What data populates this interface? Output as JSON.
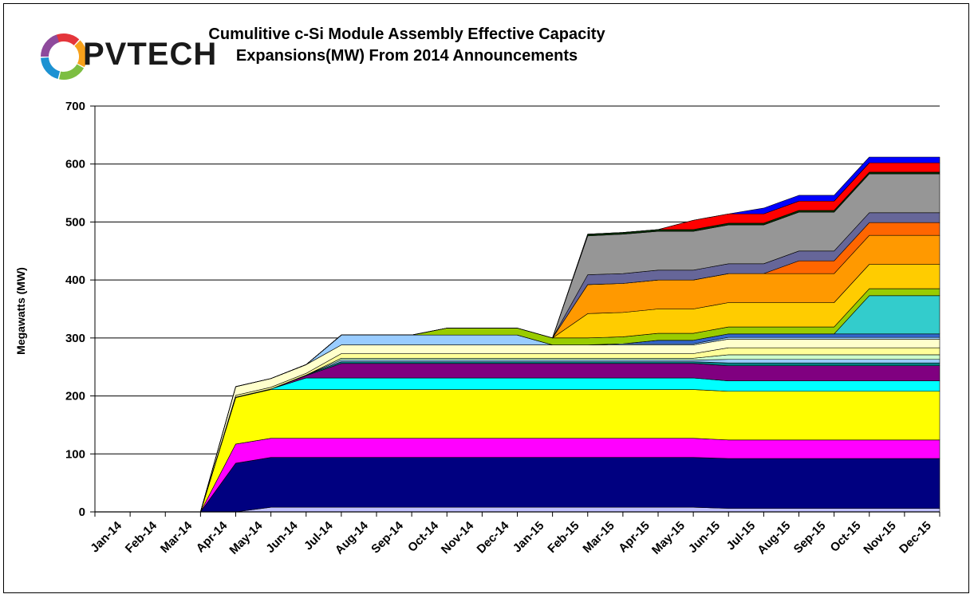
{
  "chart_data": {
    "type": "area",
    "stacked": true,
    "title_line1": "Cumulitive c-Si Module Assembly Effective Capacity",
    "title_line2": "Expansions(MW) From 2014 Announcements",
    "ylabel": "Megawatts (MW)",
    "ylim": [
      0,
      700
    ],
    "yticks": [
      0,
      100,
      200,
      300,
      400,
      500,
      600,
      700
    ],
    "grid": true,
    "categories": [
      "Jan-14",
      "Feb-14",
      "Mar-14",
      "Apr-14",
      "May-14",
      "Jun-14",
      "Jul-14",
      "Aug-14",
      "Sep-14",
      "Oct-14",
      "Nov-14",
      "Dec-14",
      "Jan-15",
      "Feb-15",
      "Mar-15",
      "Apr-15",
      "May-15",
      "Jun-15",
      "Jul-15",
      "Aug-15",
      "Sep-15",
      "Oct-15",
      "Nov-15",
      "Dec-15"
    ],
    "series": [
      {
        "color": "#C0C0FF",
        "values": [
          0,
          0,
          0,
          0,
          8,
          8,
          8,
          8,
          8,
          8,
          8,
          8,
          8,
          8,
          8,
          8,
          8,
          6,
          6,
          6,
          6,
          6,
          6,
          6
        ]
      },
      {
        "color": "#000080",
        "values": [
          0,
          0,
          0,
          84,
          86,
          86,
          86,
          86,
          86,
          86,
          86,
          86,
          86,
          86,
          86,
          86,
          86,
          86,
          86,
          86,
          86,
          86,
          86,
          86
        ]
      },
      {
        "color": "#FF00FF",
        "values": [
          0,
          0,
          0,
          33,
          33,
          33,
          33,
          33,
          33,
          33,
          33,
          33,
          33,
          33,
          33,
          33,
          33,
          32,
          32,
          32,
          32,
          32,
          32,
          32
        ]
      },
      {
        "color": "#FFFF00",
        "values": [
          0,
          0,
          0,
          80,
          84,
          84,
          84,
          84,
          84,
          84,
          84,
          84,
          84,
          84,
          84,
          84,
          84,
          84,
          84,
          84,
          84,
          84,
          84,
          84
        ]
      },
      {
        "color": "#00FFFF",
        "values": [
          0,
          0,
          0,
          1,
          1,
          20,
          20,
          20,
          20,
          20,
          20,
          20,
          20,
          20,
          20,
          20,
          20,
          18,
          18,
          18,
          18,
          18,
          18,
          18
        ]
      },
      {
        "color": "#800080",
        "values": [
          0,
          0,
          0,
          0,
          0,
          4,
          25,
          25,
          25,
          25,
          25,
          25,
          25,
          25,
          25,
          25,
          25,
          26,
          26,
          26,
          26,
          26,
          26,
          26
        ]
      },
      {
        "color": "#008080",
        "values": [
          0,
          0,
          0,
          0,
          0,
          1,
          3,
          3,
          3,
          3,
          3,
          3,
          3,
          3,
          3,
          3,
          3,
          5,
          5,
          5,
          5,
          5,
          5,
          5
        ]
      },
      {
        "color": "#99CCFF",
        "values": [
          0,
          0,
          0,
          0,
          0,
          0,
          3,
          3,
          3,
          3,
          3,
          3,
          3,
          3,
          3,
          3,
          3,
          6,
          6,
          6,
          6,
          6,
          6,
          6
        ]
      },
      {
        "color": "#CCFFCC",
        "values": [
          0,
          0,
          0,
          0,
          0,
          0,
          3,
          3,
          3,
          3,
          3,
          3,
          3,
          3,
          3,
          3,
          3,
          8,
          8,
          8,
          8,
          8,
          8,
          8
        ]
      },
      {
        "color": "#FFFF99",
        "values": [
          0,
          0,
          0,
          3,
          3,
          3,
          8,
          8,
          8,
          8,
          8,
          8,
          8,
          8,
          8,
          8,
          8,
          12,
          12,
          12,
          12,
          12,
          12,
          12
        ]
      },
      {
        "color": "#FFFFCC",
        "values": [
          0,
          0,
          0,
          15,
          15,
          15,
          15,
          15,
          15,
          15,
          15,
          15,
          15,
          15,
          15,
          15,
          15,
          15,
          15,
          15,
          15,
          15,
          15,
          15
        ]
      },
      {
        "color": "#99CCFF",
        "values": [
          0,
          0,
          0,
          0,
          0,
          0,
          17,
          17,
          17,
          17,
          17,
          17,
          0,
          0,
          2,
          2,
          2,
          3,
          3,
          3,
          3,
          3,
          3,
          3
        ]
      },
      {
        "color": "#3366CC",
        "values": [
          0,
          0,
          0,
          0,
          0,
          0,
          0,
          0,
          0,
          0,
          0,
          0,
          0,
          0,
          0,
          6,
          6,
          6,
          6,
          6,
          6,
          6,
          6,
          6
        ]
      },
      {
        "color": "#33CCCC",
        "values": [
          0,
          0,
          0,
          0,
          0,
          0,
          0,
          0,
          0,
          0,
          0,
          0,
          0,
          0,
          0,
          0,
          0,
          0,
          0,
          0,
          0,
          66,
          66,
          66
        ]
      },
      {
        "color": "#99CC00",
        "values": [
          0,
          0,
          0,
          0,
          0,
          0,
          0,
          0,
          0,
          12,
          12,
          12,
          12,
          12,
          12,
          12,
          12,
          12,
          12,
          12,
          12,
          12,
          12,
          12
        ]
      },
      {
        "color": "#FFCC00",
        "values": [
          0,
          0,
          0,
          0,
          0,
          0,
          0,
          0,
          0,
          0,
          0,
          0,
          0,
          42,
          42,
          42,
          42,
          42,
          42,
          42,
          42,
          42,
          42,
          42
        ]
      },
      {
        "color": "#FF9900",
        "values": [
          0,
          0,
          0,
          0,
          0,
          0,
          0,
          0,
          0,
          0,
          0,
          0,
          0,
          50,
          50,
          50,
          50,
          50,
          50,
          50,
          50,
          50,
          50,
          50
        ]
      },
      {
        "color": "#FF6600",
        "values": [
          0,
          0,
          0,
          0,
          0,
          0,
          0,
          0,
          0,
          0,
          0,
          0,
          0,
          0,
          0,
          0,
          0,
          0,
          0,
          22,
          22,
          22,
          22,
          22
        ]
      },
      {
        "color": "#666699",
        "values": [
          0,
          0,
          0,
          0,
          0,
          0,
          0,
          0,
          0,
          0,
          0,
          0,
          0,
          17,
          17,
          17,
          17,
          17,
          17,
          17,
          17,
          17,
          17,
          17
        ]
      },
      {
        "color": "#969696",
        "values": [
          0,
          0,
          0,
          0,
          0,
          0,
          0,
          0,
          0,
          0,
          0,
          0,
          0,
          67,
          68,
          67,
          67,
          67,
          67,
          67,
          67,
          67,
          67,
          67
        ]
      },
      {
        "color": "#003300",
        "values": [
          0,
          0,
          0,
          0,
          0,
          0,
          0,
          0,
          0,
          0,
          0,
          0,
          0,
          3,
          3,
          3,
          3,
          3,
          3,
          3,
          3,
          3,
          3,
          3
        ]
      },
      {
        "color": "#FF0000",
        "values": [
          0,
          0,
          0,
          0,
          0,
          0,
          0,
          0,
          0,
          0,
          0,
          0,
          0,
          0,
          0,
          0,
          16,
          16,
          16,
          16,
          16,
          16,
          16,
          16
        ]
      },
      {
        "color": "#0000FF",
        "values": [
          0,
          0,
          0,
          0,
          0,
          0,
          0,
          0,
          0,
          0,
          0,
          0,
          0,
          0,
          0,
          0,
          0,
          0,
          10,
          10,
          10,
          10,
          10,
          10
        ]
      }
    ]
  },
  "logo": {
    "text": "PVTECH",
    "colors": [
      "#E4353B",
      "#F7A11B",
      "#7DBE42",
      "#1C92D2",
      "#8E4A9C"
    ]
  }
}
